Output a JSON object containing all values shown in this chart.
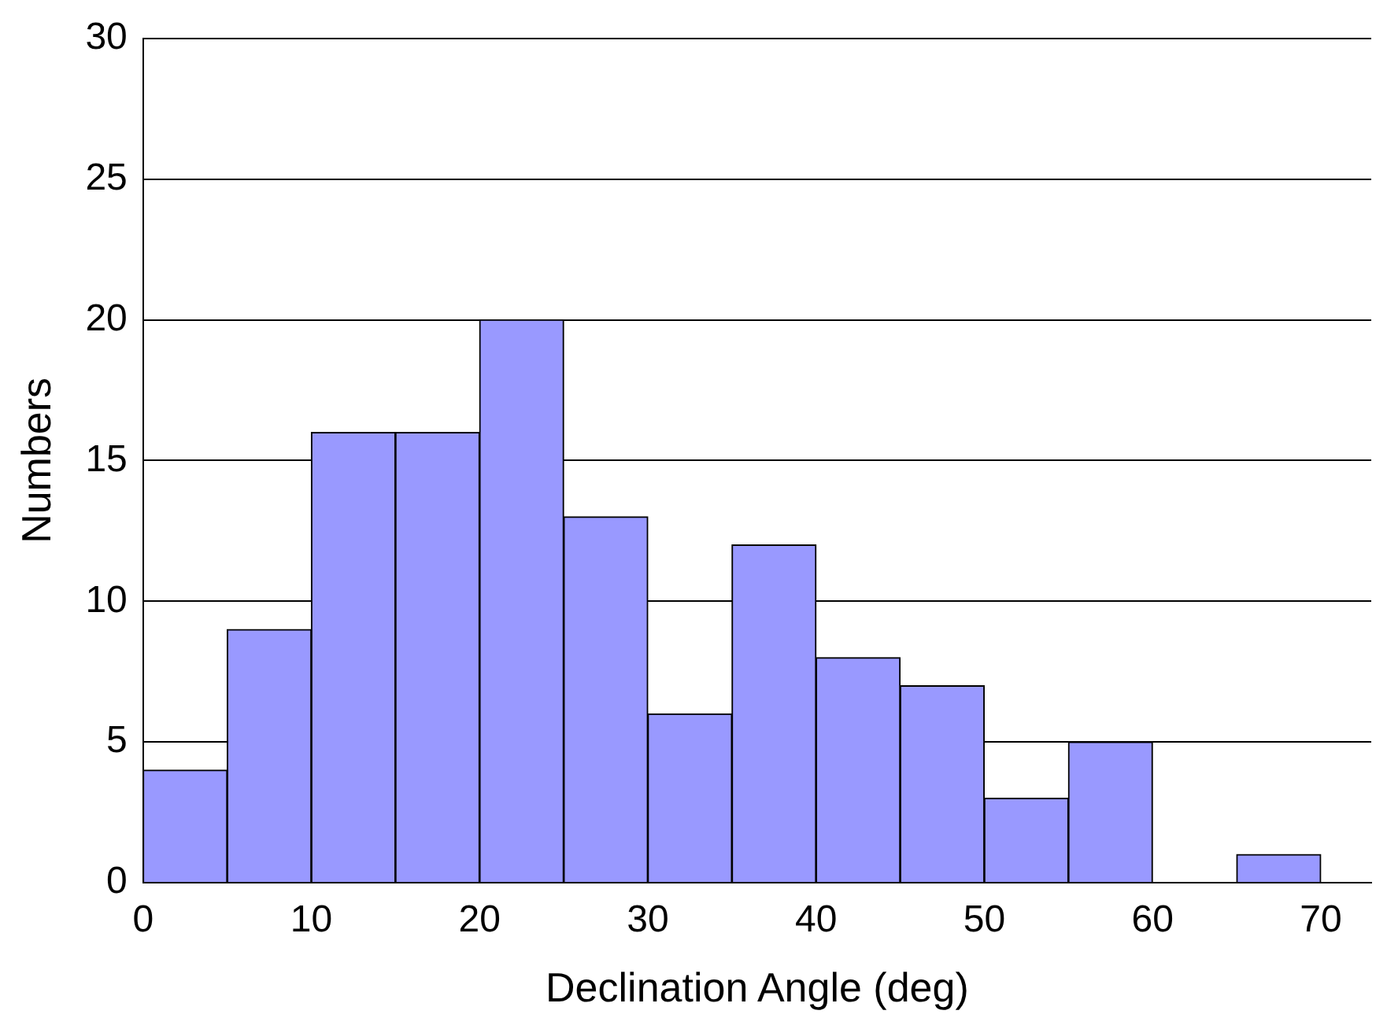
{
  "chart_data": {
    "type": "histogram",
    "xlabel": "Declination Angle (deg)",
    "ylabel": "Numbers",
    "bins": [
      0,
      5,
      10,
      15,
      20,
      25,
      30,
      35,
      40,
      45,
      50,
      55,
      60,
      65,
      70
    ],
    "values": [
      4,
      9,
      16,
      16,
      20,
      13,
      6,
      12,
      8,
      7,
      3,
      5,
      0,
      1
    ],
    "color": "#9999ff",
    "xlim": [
      0,
      73
    ],
    "xticks": [
      0,
      10,
      20,
      30,
      40,
      50,
      60,
      70
    ],
    "ylim": [
      0,
      30
    ],
    "yticks": [
      0,
      5,
      10,
      15,
      20,
      25,
      30
    ],
    "grid": "y",
    "legend": false
  }
}
